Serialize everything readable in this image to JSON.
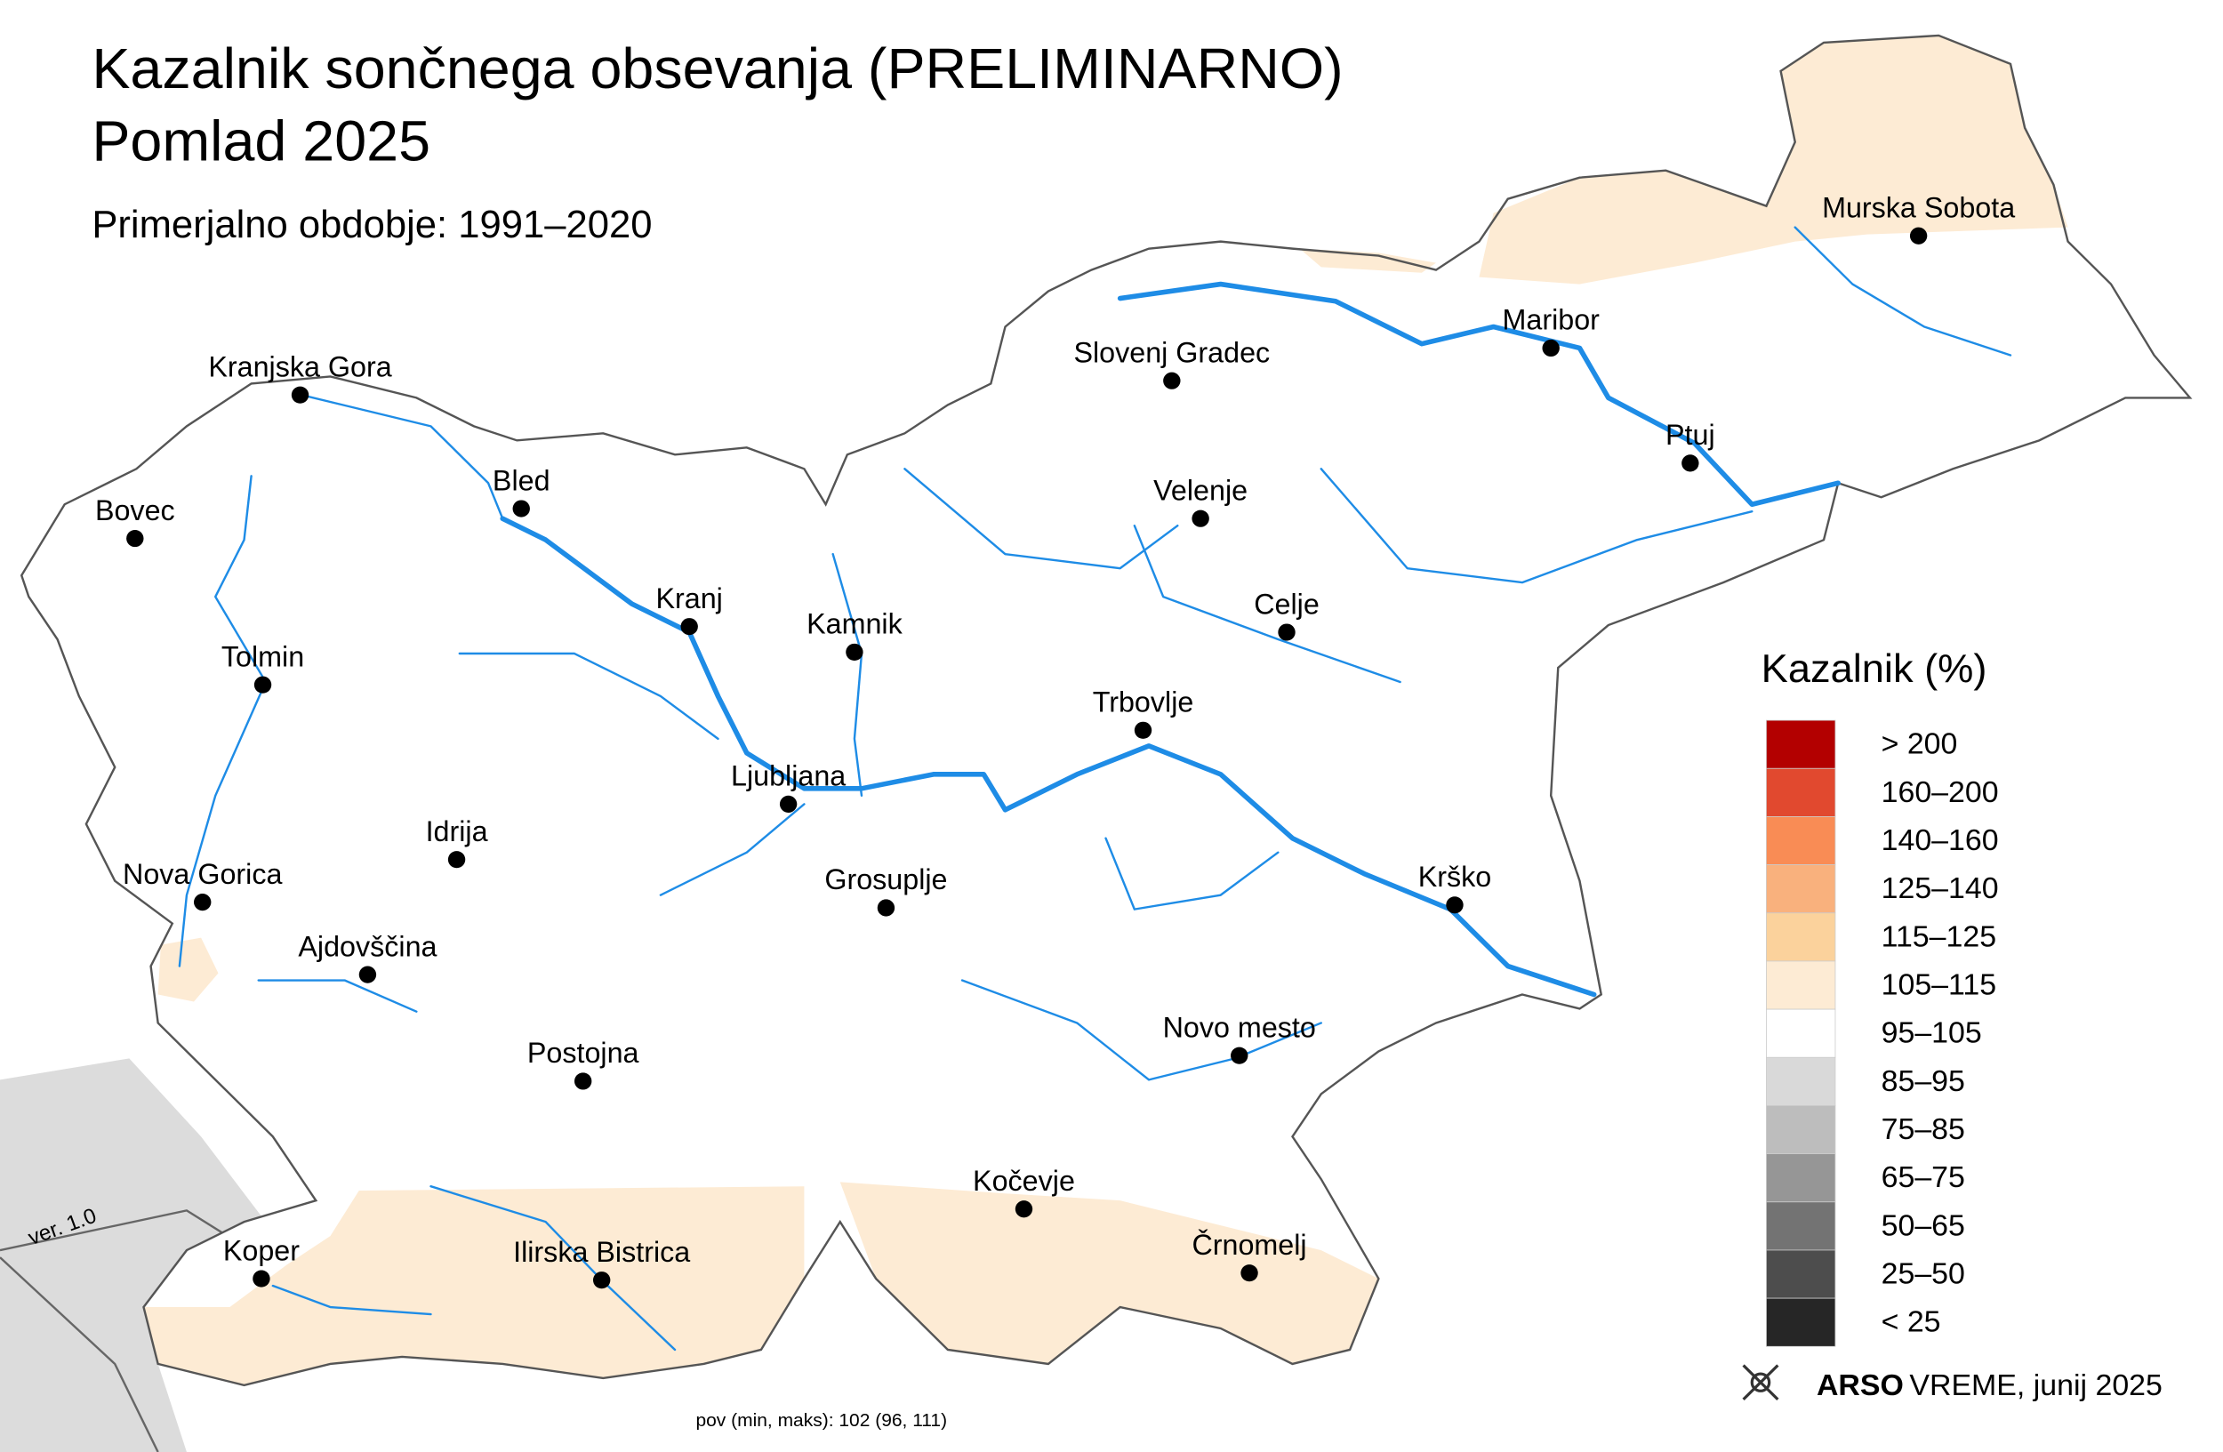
{
  "header": {
    "title": "Kazalnik sončnega obsevanja (PRELIMINARNO)",
    "season": "Pomlad 2025",
    "reference": "Primerjalno obdobje: 1991–2020"
  },
  "cities": [
    "Kranjska Gora",
    "Bovec",
    "Bled",
    "Kranj",
    "Kamnik",
    "Tolmin",
    "Ljubljana",
    "Idrija",
    "Nova Gorica",
    "Ajdovščina",
    "Grosuplje",
    "Postojna",
    "Koper",
    "Ilirska Bistrica",
    "Kočevje",
    "Črnomelj",
    "Novo mesto",
    "Krško",
    "Trbovlje",
    "Celje",
    "Velenje",
    "Slovenj Gradec",
    "Maribor",
    "Ptuj",
    "Murska Sobota"
  ],
  "legend": {
    "title": "Kazalnik (%)",
    "items": [
      {
        "label": "> 200",
        "color": "#b30000"
      },
      {
        "label": "160–200",
        "color": "#e1492f"
      },
      {
        "label": "140–160",
        "color": "#f98c55"
      },
      {
        "label": "125–140",
        "color": "#f9b17d"
      },
      {
        "label": "115–125",
        "color": "#fbd29c"
      },
      {
        "label": "105–115",
        "color": "#fdebd4"
      },
      {
        "label": "95–105",
        "color": "#ffffff"
      },
      {
        "label": "85–95",
        "color": "#d9d9d9"
      },
      {
        "label": "75–85",
        "color": "#bdbdbd"
      },
      {
        "label": "65–75",
        "color": "#969696"
      },
      {
        "label": "50–65",
        "color": "#737373"
      },
      {
        "label": "25–50",
        "color": "#4d4d4d"
      },
      {
        "label": "< 25",
        "color": "#262626"
      }
    ]
  },
  "footer": {
    "brand": "ARSO",
    "product": "VREME",
    "date": ", junij 2025",
    "stats": "pov (min, maks): 102 (96, 111)",
    "version": "ver. 1.0"
  }
}
